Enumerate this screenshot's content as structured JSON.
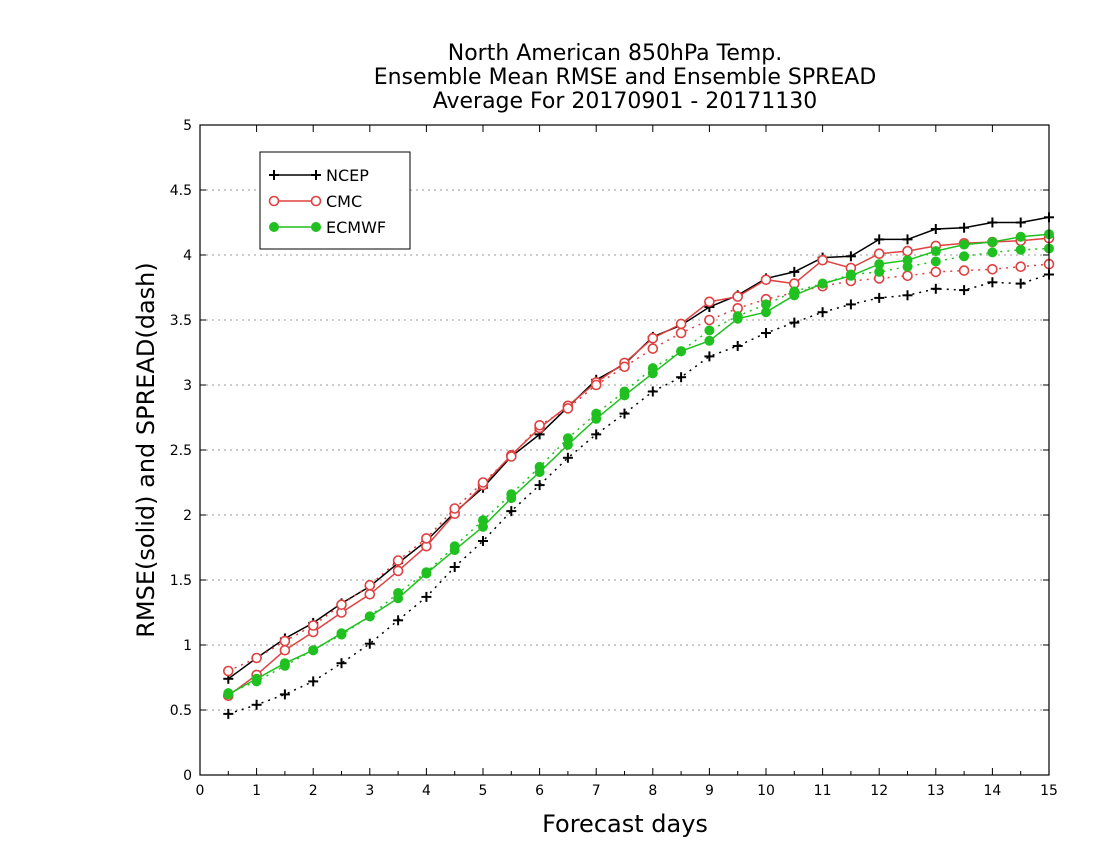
{
  "chart_data": {
    "type": "line",
    "title": [
      "North American 850hPa Temp.",
      "Ensemble Mean RMSE and Ensemble SPREAD",
      "Average For 20170901 - 20171130"
    ],
    "xlabel": "Forecast days",
    "ylabel": "RMSE(solid) and SPREAD(dash)",
    "xlim": [
      0,
      15
    ],
    "ylim": [
      0,
      5
    ],
    "x_ticks": [
      "0",
      "1",
      "2",
      "3",
      "4",
      "5",
      "6",
      "7",
      "8",
      "9",
      "10",
      "11",
      "12",
      "13",
      "14",
      "15"
    ],
    "y_ticks": [
      "0",
      "0.5",
      "1",
      "1.5",
      "2",
      "2.5",
      "3",
      "3.5",
      "4",
      "4.5",
      "5"
    ],
    "grid": "horizontal dotted",
    "legend_position": "top-left",
    "x": [
      0.5,
      1,
      1.5,
      2,
      2.5,
      3,
      3.5,
      4,
      4.5,
      5,
      5.5,
      6,
      6.5,
      7,
      7.5,
      8,
      8.5,
      9,
      9.5,
      10,
      10.5,
      11,
      11.5,
      12,
      12.5,
      13,
      13.5,
      14,
      14.5,
      15
    ],
    "series": [
      {
        "name": "NCEP",
        "style": "solid",
        "marker": "plus",
        "color": "#000000",
        "values": [
          0.74,
          0.9,
          1.05,
          1.17,
          1.32,
          1.45,
          1.63,
          1.8,
          2.02,
          2.21,
          2.45,
          2.62,
          2.83,
          3.04,
          3.16,
          3.37,
          3.46,
          3.6,
          3.69,
          3.82,
          3.87,
          3.98,
          3.99,
          4.12,
          4.12,
          4.2,
          4.21,
          4.25,
          4.25,
          4.29
        ]
      },
      {
        "name": "",
        "style": "dash",
        "marker": "plus",
        "color": "#000000",
        "values": [
          0.47,
          0.54,
          0.62,
          0.72,
          0.86,
          1.01,
          1.19,
          1.37,
          1.6,
          1.8,
          2.03,
          2.23,
          2.44,
          2.62,
          2.78,
          2.95,
          3.06,
          3.22,
          3.3,
          3.4,
          3.48,
          3.56,
          3.62,
          3.67,
          3.69,
          3.74,
          3.73,
          3.79,
          3.78,
          3.85
        ]
      },
      {
        "name": "CMC",
        "style": "solid",
        "marker": "open-circle",
        "color": "#e04040",
        "values": [
          0.61,
          0.77,
          0.96,
          1.1,
          1.25,
          1.39,
          1.57,
          1.76,
          2.01,
          2.23,
          2.46,
          2.67,
          2.84,
          3.02,
          3.17,
          3.36,
          3.47,
          3.64,
          3.68,
          3.81,
          3.78,
          3.96,
          3.9,
          4.01,
          4.03,
          4.07,
          4.09,
          4.1,
          4.11,
          4.13
        ]
      },
      {
        "name": "",
        "style": "dash",
        "marker": "open-circle",
        "color": "#e04040",
        "values": [
          0.8,
          0.9,
          1.03,
          1.15,
          1.31,
          1.46,
          1.65,
          1.82,
          2.05,
          2.25,
          2.45,
          2.69,
          2.82,
          3.0,
          3.14,
          3.28,
          3.4,
          3.5,
          3.59,
          3.66,
          3.71,
          3.76,
          3.8,
          3.82,
          3.84,
          3.87,
          3.88,
          3.89,
          3.91,
          3.93
        ]
      },
      {
        "name": "ECMWF",
        "style": "solid",
        "marker": "filled-circle",
        "color": "#20c020",
        "values": [
          0.62,
          0.74,
          0.86,
          0.96,
          1.09,
          1.22,
          1.36,
          1.55,
          1.73,
          1.91,
          2.13,
          2.33,
          2.54,
          2.74,
          2.92,
          3.09,
          3.26,
          3.34,
          3.51,
          3.56,
          3.69,
          3.78,
          3.84,
          3.93,
          3.96,
          4.03,
          4.08,
          4.1,
          4.14,
          4.16
        ]
      },
      {
        "name": "",
        "style": "dash",
        "marker": "filled-circle",
        "color": "#20c020",
        "values": [
          0.63,
          0.72,
          0.84,
          0.96,
          1.08,
          1.22,
          1.4,
          1.56,
          1.76,
          1.96,
          2.16,
          2.37,
          2.59,
          2.78,
          2.95,
          3.13,
          3.26,
          3.42,
          3.53,
          3.62,
          3.72,
          3.78,
          3.85,
          3.87,
          3.91,
          3.95,
          3.99,
          4.02,
          4.04,
          4.05
        ]
      }
    ]
  }
}
